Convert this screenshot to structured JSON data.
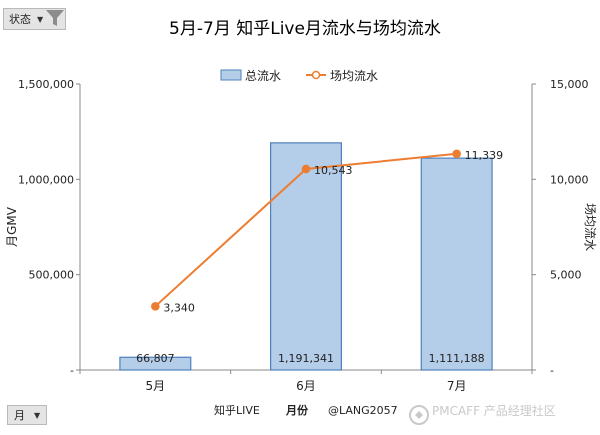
{
  "controls": {
    "status_filter_label": "状态",
    "month_filter_label": "月"
  },
  "footer": {
    "text": "知乎LIVE",
    "xlabel": "月份",
    "handle": "@LANG2057"
  },
  "watermark": {
    "text": "PMCAFF 产品经理社区"
  },
  "colors": {
    "bar_fill": "#b4cde8",
    "bar_edge": "#4f81bd",
    "line": "#ed7d31",
    "axis": "#4f81bd"
  },
  "icons": {
    "filter": "funnel-icon",
    "dropdown": "dropdown-arrow-icon"
  },
  "chart_data": {
    "type": "bar",
    "title": "5月-7月 知乎Live月流水与场均流水",
    "categories": [
      "5月",
      "6月",
      "7月"
    ],
    "ylabel": "月GMV",
    "y2label": "场均流水",
    "ylim": [
      0,
      1500000
    ],
    "y2lim": [
      0,
      15000
    ],
    "yticks": [
      "-",
      "500,000",
      "1,000,000",
      "1,500,000"
    ],
    "y2ticks": [
      "-",
      "5,000",
      "10,000",
      "15,000"
    ],
    "legend_position": "top",
    "grid": false,
    "series": [
      {
        "name": "总流水",
        "kind": "bar",
        "axis": "left",
        "values": [
          66807,
          1191341,
          1111188
        ],
        "labels": [
          "66,807",
          "1,191,341",
          "1,111,188"
        ]
      },
      {
        "name": "场均流水",
        "kind": "line",
        "axis": "right",
        "values": [
          3340,
          10543,
          11339
        ],
        "labels": [
          "3,340",
          "10,543",
          "11,339"
        ]
      }
    ]
  }
}
